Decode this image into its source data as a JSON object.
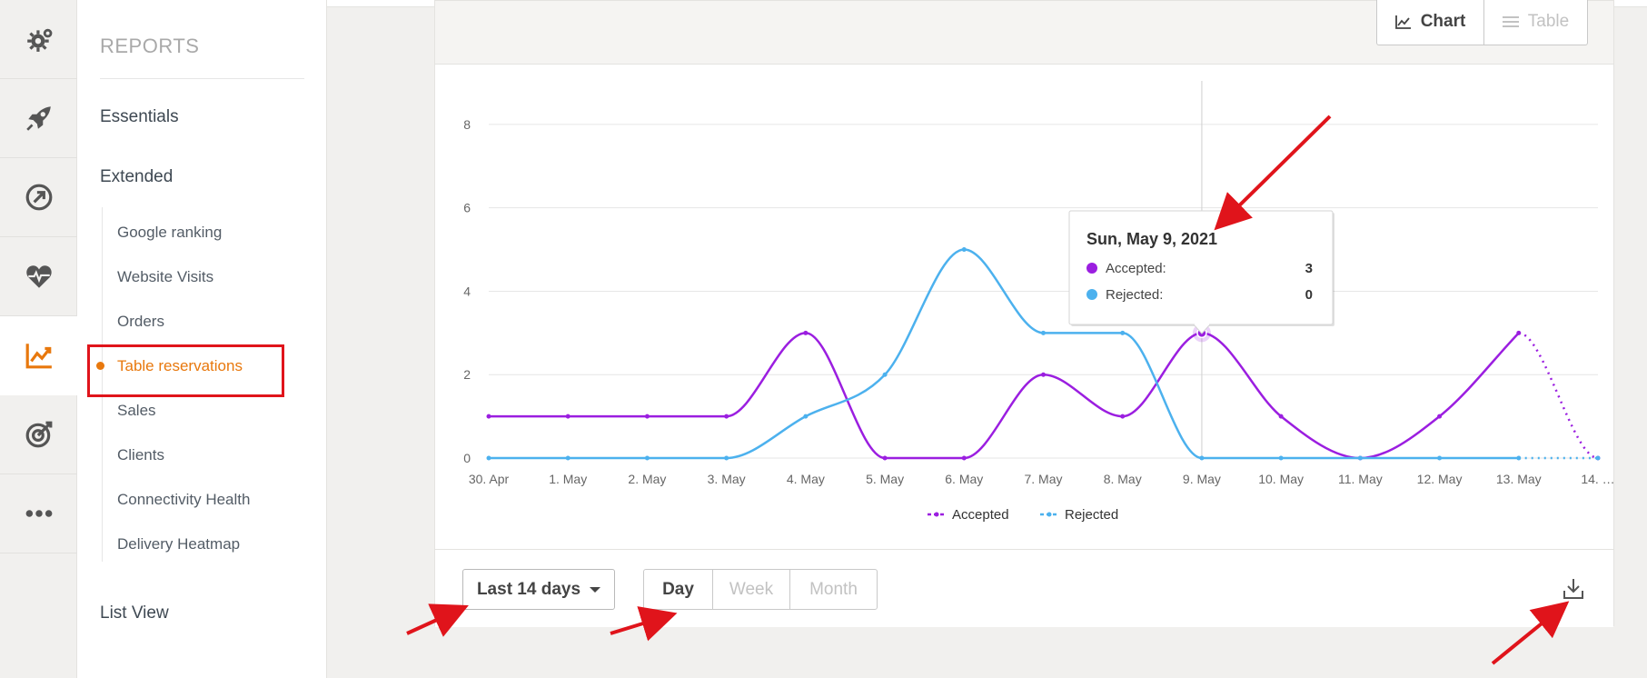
{
  "sidebar": {
    "icons": [
      {
        "name": "settings-gears-icon",
        "active": false
      },
      {
        "name": "rocket-icon",
        "active": false
      },
      {
        "name": "arrow-circle-icon",
        "active": false
      },
      {
        "name": "heart-pulse-icon",
        "active": false
      },
      {
        "name": "reports-chart-icon",
        "active": true
      },
      {
        "name": "target-icon",
        "active": false
      },
      {
        "name": "more-dots-icon",
        "active": false
      }
    ]
  },
  "menu": {
    "title": "REPORTS",
    "essentials": "Essentials",
    "extended": "Extended",
    "items": [
      {
        "label": "Google ranking"
      },
      {
        "label": "Website Visits"
      },
      {
        "label": "Orders"
      },
      {
        "label": "Table reservations",
        "active": true
      },
      {
        "label": "Sales"
      },
      {
        "label": "Clients"
      },
      {
        "label": "Connectivity Health"
      },
      {
        "label": "Delivery Heatmap"
      }
    ],
    "list_view": "List View"
  },
  "view_toggle": {
    "chart": "Chart",
    "table": "Table",
    "selected": "Chart"
  },
  "controls": {
    "range": "Last 14 days",
    "granularity": {
      "day": "Day",
      "week": "Week",
      "month": "Month",
      "selected": "Day"
    }
  },
  "tooltip": {
    "date": "Sun, May 9, 2021",
    "accepted_label": "Accepted:",
    "accepted_value": "3",
    "rejected_label": "Rejected:",
    "rejected_value": "0"
  },
  "colors": {
    "accepted": "#9b1ee0",
    "rejected": "#4cb1ee",
    "accent": "#e8780d",
    "annotation": "#e0141b"
  },
  "chart_data": {
    "type": "line",
    "categories": [
      "30. Apr",
      "1. May",
      "2. May",
      "3. May",
      "4. May",
      "5. May",
      "6. May",
      "7. May",
      "8. May",
      "9. May",
      "10. May",
      "11. May",
      "12. May",
      "13. May",
      "14. …"
    ],
    "series": [
      {
        "name": "Accepted",
        "values": [
          1,
          1,
          1,
          1,
          3,
          0,
          0,
          2,
          1,
          3,
          1,
          0,
          1,
          3,
          0
        ]
      },
      {
        "name": "Rejected",
        "values": [
          0,
          0,
          0,
          0,
          1,
          2,
          5,
          3,
          3,
          0,
          0,
          0,
          0,
          0,
          0
        ]
      }
    ],
    "yticks": [
      0,
      2,
      4,
      6,
      8
    ],
    "ylim": [
      0,
      9
    ],
    "grid": true,
    "legend": "bottom-center",
    "highlight_category": "9. May",
    "last_point_partial": true
  }
}
